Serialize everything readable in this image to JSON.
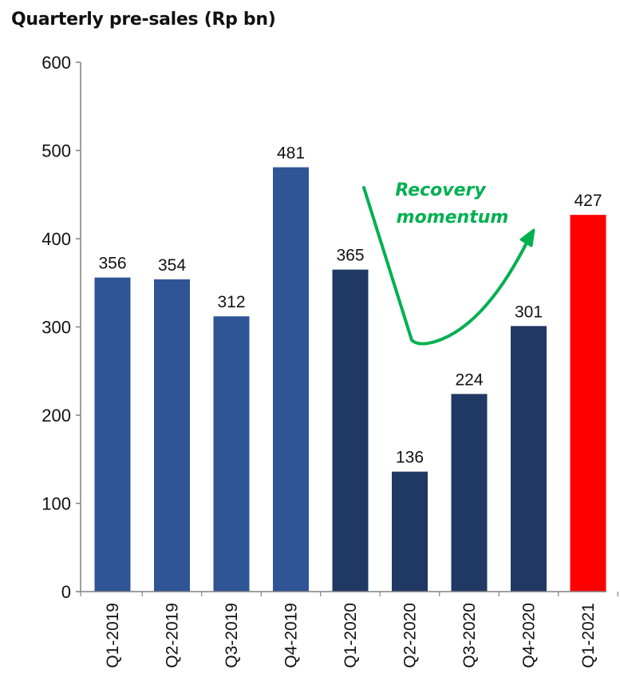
{
  "chart_data": {
    "type": "bar",
    "title": "Quarterly pre-sales (Rp bn)",
    "categories": [
      "Q1-2019",
      "Q2-2019",
      "Q3-2019",
      "Q4-2019",
      "Q1-2020",
      "Q2-2020",
      "Q3-2020",
      "Q4-2020",
      "Q1-2021"
    ],
    "values": [
      356,
      354,
      312,
      481,
      365,
      136,
      224,
      301,
      427
    ],
    "colors": [
      "#2F5597",
      "#2F5597",
      "#2F5597",
      "#2F5597",
      "#203864",
      "#203864",
      "#203864",
      "#203864",
      "#FF0000"
    ],
    "ylim": [
      0,
      600
    ],
    "yticks": [
      0,
      100,
      200,
      300,
      400,
      500,
      600
    ],
    "grid": false,
    "annotation": {
      "lines": [
        "Recovery",
        "momentum"
      ],
      "color": "#00B050"
    }
  }
}
